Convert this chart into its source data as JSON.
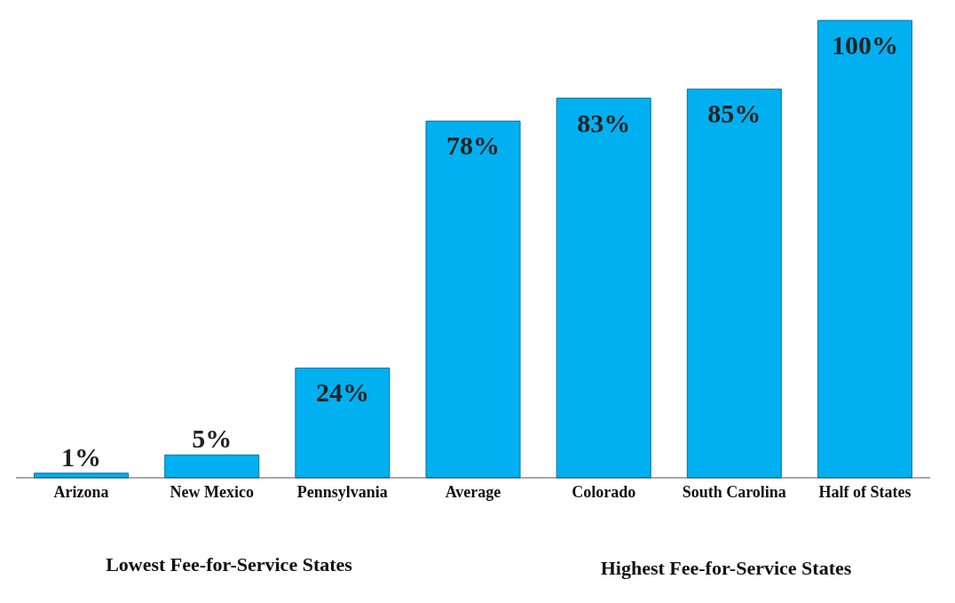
{
  "chart_data": {
    "type": "bar",
    "categories": [
      "Arizona",
      "New Mexico",
      "Pennsylvania",
      "Average",
      "Colorado",
      "South Carolina",
      "Half of States"
    ],
    "values": [
      1,
      5,
      24,
      78,
      83,
      85,
      100
    ],
    "value_labels": [
      "1%",
      "5%",
      "24%",
      "78%",
      "83%",
      "85%",
      "100%"
    ],
    "color": "#00b0f0",
    "grid": false,
    "annotations": [
      "Lowest Fee-for-Service States",
      "Highest Fee-for-Service States"
    ]
  }
}
